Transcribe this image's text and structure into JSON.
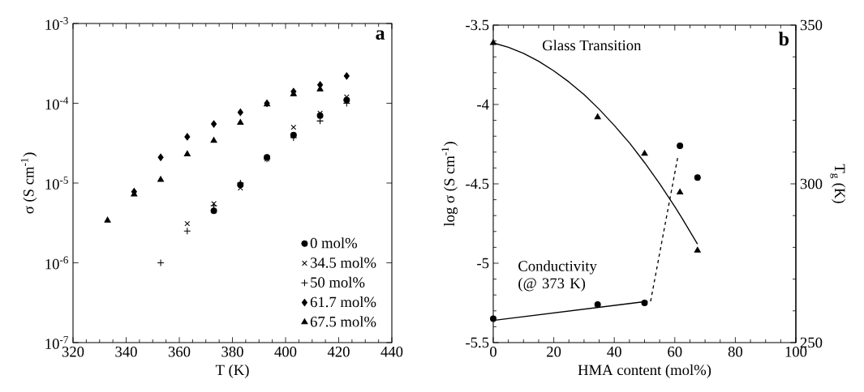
{
  "chart_data": [
    {
      "type": "scatter",
      "xlabel": "T (K)",
      "ylabel": "σ (S cm$^{-1}$)",
      "log": "y",
      "xlim": [
        320,
        440
      ],
      "ylim": [
        1e-07,
        0.001
      ],
      "xticks": [
        320,
        340,
        360,
        380,
        400,
        420,
        440
      ],
      "yticks": [
        {
          "value": 1e-07,
          "label": "10$^{-7}$"
        },
        {
          "value": 1e-06,
          "label": "10$^{-6}$"
        },
        {
          "value": 1e-05,
          "label": "10$^{-5}$"
        },
        {
          "value": 0.0001,
          "label": "10$^{-4}$"
        },
        {
          "value": 0.001,
          "label": "10$^{-3}$"
        }
      ],
      "legend": "bottom right",
      "annotations": [
        "a"
      ],
      "series": [
        {
          "name": "0 mol%",
          "color": "#000000",
          "marker": "circle",
          "x": [
            373,
            383,
            393,
            403,
            413,
            423
          ],
          "values": [
            4.5e-06,
            9.5e-06,
            2.1e-05,
            4e-05,
            7e-05,
            0.00011
          ]
        },
        {
          "name": "34.5 mol%",
          "color": "#000000",
          "marker": "cross",
          "x": [
            363,
            373,
            383,
            393,
            403,
            413,
            423
          ],
          "values": [
            3.1e-06,
            5.5e-06,
            8.7e-06,
            2e-05,
            5e-05,
            7.5e-05,
            0.00012
          ]
        },
        {
          "name": "50 mol%",
          "color": "#000000",
          "marker": "plus",
          "x": [
            353,
            363,
            373,
            383,
            393,
            403,
            413,
            423
          ],
          "values": [
            1e-06,
            2.5e-06,
            5.2e-06,
            1e-05,
            2e-05,
            3.7e-05,
            6e-05,
            0.0001
          ]
        },
        {
          "name": "61.7 mol%",
          "color": "#000000",
          "marker": "diamond",
          "x": [
            343,
            353,
            363,
            373,
            383,
            393,
            403,
            413,
            423
          ],
          "values": [
            7.8e-06,
            2.1e-05,
            3.8e-05,
            5.5e-05,
            7.7e-05,
            0.0001,
            0.00014,
            0.00017,
            0.00022
          ]
        },
        {
          "name": "67.5 mol%",
          "color": "#000000",
          "marker": "triangle",
          "x": [
            333,
            343,
            353,
            363,
            373,
            383,
            393,
            403,
            413
          ],
          "values": [
            3.4e-06,
            7.2e-06,
            1.1e-05,
            2.3e-05,
            3.4e-05,
            5.7e-05,
            9.7e-05,
            0.00013,
            0.00015
          ]
        }
      ]
    },
    {
      "type": "scatter",
      "xlabel": "HMA content (mol%)",
      "ylabel": "log σ (S cm$^{-1}$)",
      "y2label": "T$_{g}$ (K)",
      "xlim": [
        0,
        100
      ],
      "ylim": [
        -5.5,
        -3.5
      ],
      "y2lim": [
        250,
        350
      ],
      "xticks": [
        0,
        20,
        40,
        60,
        80,
        100
      ],
      "yticks": [
        -5.5,
        -5,
        -4.5,
        -4,
        -3.5
      ],
      "y2ticks": [
        250,
        300,
        350
      ],
      "legend": false,
      "annotations": [
        "b",
        "Glass Transition",
        "Conductivity (@ 373 K)"
      ],
      "series": [
        {
          "type": "scatter",
          "color": "#000000",
          "marker": "circle",
          "x": [
            0,
            34.5,
            50,
            61.7,
            67.5
          ],
          "values": [
            -5.35,
            -5.26,
            -5.25,
            -4.26,
            -4.46
          ]
        },
        {
          "type": "line",
          "color": "#000000",
          "line_style": "solid",
          "x": [
            0,
            51
          ],
          "values": [
            -5.36,
            -5.24
          ]
        },
        {
          "type": "line",
          "color": "#000000",
          "line_style": "dashed",
          "x": [
            52,
            61
          ],
          "values": [
            -5.24,
            -4.33
          ]
        },
        {
          "type": "scatter",
          "axis": "y2",
          "color": "#000000",
          "marker": "triangle",
          "x": [
            0,
            34.5,
            50,
            61.7,
            67.5
          ],
          "values": [
            344.4,
            321,
            309.5,
            297.3,
            279
          ]
        },
        {
          "type": "line",
          "axis": "y2",
          "color": "#000000",
          "line_style": "solid",
          "x": [
            0,
            5,
            10,
            15,
            20,
            25,
            30,
            35,
            40,
            45,
            50,
            55,
            60,
            62.5,
            67.5
          ],
          "values": [
            344.4,
            343,
            341.1,
            338.6,
            335.6,
            332.1,
            328.1,
            323.5,
            318.4,
            312.9,
            306.7,
            300,
            292.8,
            289,
            281
          ]
        }
      ]
    }
  ]
}
